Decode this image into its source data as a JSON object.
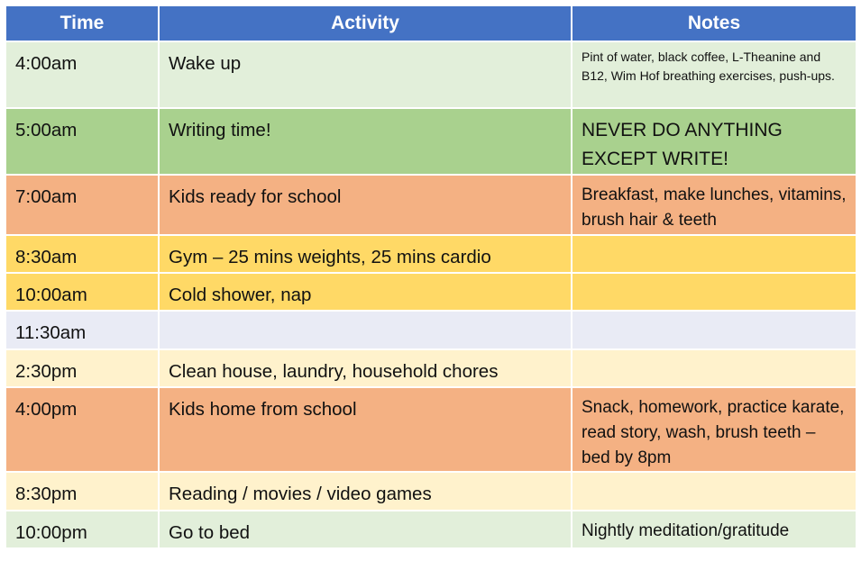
{
  "headers": {
    "time": "Time",
    "activity": "Activity",
    "notes": "Notes"
  },
  "colors": {
    "header": "#4472C4",
    "light_green": "#E2EFDA",
    "green": "#A9D18E",
    "orange": "#F4B183",
    "yellow": "#FFD966",
    "lavender": "#E9EBF5",
    "cream": "#FFF2CC"
  },
  "rows": [
    {
      "time": "4:00am",
      "activity": "Wake up",
      "notes": "Pint of water, black coffee, L-Theanine and B12, Wim Hof breathing exercises, push-ups.",
      "color": "#E2EFDA"
    },
    {
      "time": "5:00am",
      "activity": "Writing time!",
      "notes": "NEVER DO ANYTHING EXCEPT WRITE!",
      "color": "#A9D18E"
    },
    {
      "time": "7:00am",
      "activity": "Kids ready for school",
      "notes": "Breakfast, make lunches, vitamins, brush hair & teeth",
      "color": "#F4B183"
    },
    {
      "time": "8:30am",
      "activity": "Gym – 25 mins weights, 25 mins cardio",
      "notes": "",
      "color": "#FFD966"
    },
    {
      "time": "10:00am",
      "activity": "Cold shower, nap",
      "notes": "",
      "color": "#FFD966"
    },
    {
      "time": "11:30am",
      "activity": "",
      "notes": "",
      "color": "#E9EBF5"
    },
    {
      "time": "2:30pm",
      "activity": "Clean house, laundry, household chores",
      "notes": "",
      "color": "#FFF2CC"
    },
    {
      "time": "4:00pm",
      "activity": "Kids home from school",
      "notes": "Snack, homework, practice karate, read story, wash, brush teeth – bed by 8pm",
      "color": "#F4B183"
    },
    {
      "time": "8:30pm",
      "activity": "Reading / movies / video games",
      "notes": "",
      "color": "#FFF2CC"
    },
    {
      "time": "10:00pm",
      "activity": "Go to bed",
      "notes": "Nightly meditation/gratitude",
      "color": "#E2EFDA"
    }
  ]
}
